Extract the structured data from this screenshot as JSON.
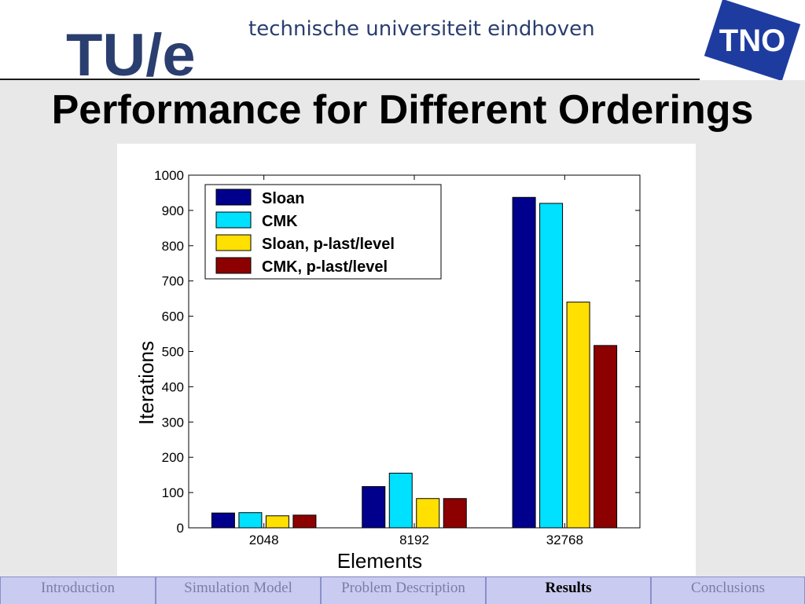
{
  "header": {
    "university_name": "technische universiteit eindhoven",
    "logo_left": "TU/e",
    "logo_right": "TNO"
  },
  "slide": {
    "title": "Performance for Different Orderings"
  },
  "colors": {
    "sloan": "#00008c",
    "cmk": "#00e0ff",
    "sloan_plast": "#ffe000",
    "cmk_plast": "#8c0000",
    "tue_blue": "#2a3e6f",
    "tno_blue": "#1e3ca0",
    "nav_bg": "#c9ccf0"
  },
  "chart_data": {
    "type": "bar",
    "categories": [
      "2048",
      "8192",
      "32768"
    ],
    "series": [
      {
        "name": "Sloan",
        "values": [
          42,
          117,
          937
        ]
      },
      {
        "name": "CMK",
        "values": [
          43,
          155,
          920
        ]
      },
      {
        "name": "Sloan, p-last/level",
        "values": [
          34,
          83,
          640
        ]
      },
      {
        "name": "CMK, p-last/level",
        "values": [
          36,
          83,
          517
        ]
      }
    ],
    "xlabel": "Elements",
    "ylabel": "Iterations",
    "ylim": [
      0,
      1000
    ],
    "yticks": [
      0,
      100,
      200,
      300,
      400,
      500,
      600,
      700,
      800,
      900,
      1000
    ],
    "legend_position": "top-left",
    "grid": false
  },
  "nav": {
    "tabs": [
      {
        "label": "Introduction",
        "active": false
      },
      {
        "label": "Simulation Model",
        "active": false
      },
      {
        "label": "Problem Description",
        "active": false
      },
      {
        "label": "Results",
        "active": true
      },
      {
        "label": "Conclusions",
        "active": false
      }
    ]
  }
}
